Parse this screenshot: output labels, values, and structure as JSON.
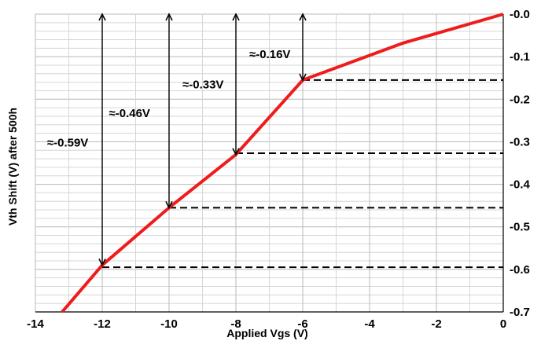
{
  "chart_data": {
    "type": "line",
    "title": "",
    "xlabel": "Applied Vgs (V)",
    "ylabel": "Vth Shift (V) after 500h",
    "xlim": [
      -14,
      0
    ],
    "ylim": [
      -0.7,
      0.0
    ],
    "x_ticks": [
      -14,
      -12,
      -10,
      -8,
      -6,
      -4,
      -2,
      0
    ],
    "x_tick_labels": [
      "-14",
      "-12",
      "-10",
      "-8",
      "-6",
      "-4",
      "-2",
      "0"
    ],
    "y_ticks": [
      0.0,
      -0.1,
      -0.2,
      -0.3,
      -0.4,
      -0.5,
      -0.6,
      -0.7
    ],
    "y_tick_labels": [
      "-0.0",
      "-0.1",
      "-0.2",
      "-0.3",
      "-0.4",
      "-0.5",
      "-0.6",
      "-0.7"
    ],
    "y_axis_position": "right",
    "grid": true,
    "series": [
      {
        "color": "#ee1c1c",
        "x": [
          -13.2,
          -12,
          -10,
          -8,
          -6,
          -3,
          0
        ],
        "y": [
          -0.7,
          -0.59,
          -0.455,
          -0.33,
          -0.155,
          -0.068,
          0.0
        ]
      }
    ],
    "reference_lines": [
      {
        "x_start": -12,
        "x_end": 0,
        "y": -0.595
      },
      {
        "x_start": -10,
        "x_end": 0,
        "y": -0.455
      },
      {
        "x_start": -8,
        "x_end": 0,
        "y": -0.327
      },
      {
        "x_start": -6,
        "x_end": 0,
        "y": -0.155
      }
    ],
    "arrows": [
      {
        "x": -12,
        "y_top": 0.0,
        "y_bottom": -0.59
      },
      {
        "x": -10,
        "y_top": 0.0,
        "y_bottom": -0.455
      },
      {
        "x": -8,
        "y_top": 0.0,
        "y_bottom": -0.33
      },
      {
        "x": -6,
        "y_top": 0.0,
        "y_bottom": -0.155
      }
    ],
    "annotations": [
      {
        "text": "≈-0.59V",
        "x": -13.65,
        "y": -0.302
      },
      {
        "text": "≈-0.46V",
        "x": -11.8,
        "y": -0.233
      },
      {
        "text": "≈-0.33V",
        "x": -9.6,
        "y": -0.165
      },
      {
        "text": "≈-0.16V",
        "x": -7.6,
        "y": -0.094
      }
    ]
  }
}
